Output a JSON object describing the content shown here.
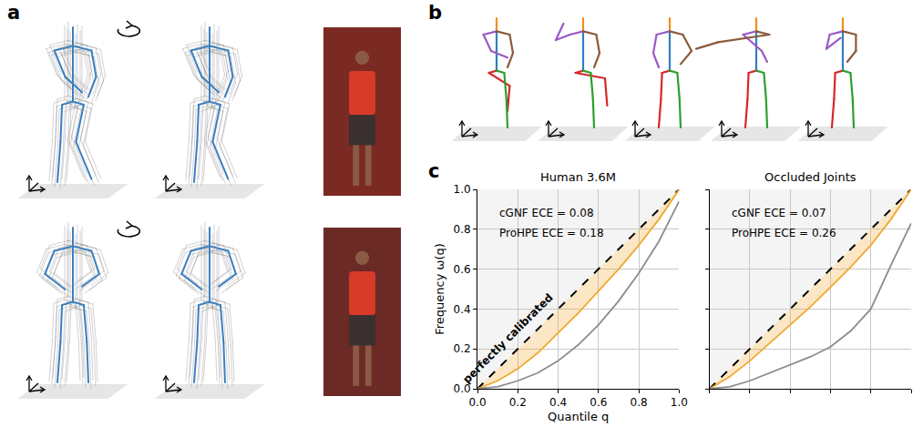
{
  "panel_labels": [
    "a",
    "b",
    "c"
  ],
  "chart_data": [
    {
      "type": "line",
      "title": "Human 3.6M",
      "x_label": "Quantile q",
      "y_label": "Frequency ω(q)",
      "x": [
        0,
        0.1,
        0.2,
        0.3,
        0.4,
        0.5,
        0.6,
        0.7,
        0.8,
        0.9,
        1.0
      ],
      "series": [
        {
          "name": "perfectly calibrated",
          "color": "#000000",
          "line_style": "dashed",
          "values": [
            0,
            0.1,
            0.2,
            0.3,
            0.4,
            0.5,
            0.6,
            0.7,
            0.8,
            0.9,
            1.0
          ]
        },
        {
          "type": "area",
          "color": "#f0a830",
          "values": [
            0,
            0.04,
            0.1,
            0.18,
            0.28,
            0.38,
            0.49,
            0.6,
            0.72,
            0.85,
            1.0
          ]
        },
        {
          "color": "#8c8c8c",
          "values": [
            0,
            0.01,
            0.04,
            0.08,
            0.14,
            0.22,
            0.32,
            0.44,
            0.58,
            0.74,
            0.94
          ]
        }
      ],
      "annotations": [
        "cGNF ECE = 0.08",
        "ProHPE ECE = 0.18"
      ],
      "xlim": [
        0,
        1
      ],
      "ylim": [
        0,
        1
      ],
      "xticks": [
        {
          "value": 0,
          "label": "0.0"
        },
        {
          "value": 0.2,
          "label": "0.2"
        },
        {
          "value": 0.4,
          "label": "0.4"
        },
        {
          "value": 0.6,
          "label": "0.6"
        },
        {
          "value": 0.8,
          "label": "0.8"
        },
        {
          "value": 1,
          "label": "1.0"
        }
      ],
      "yticks": [
        {
          "value": 0,
          "label": "0.0"
        },
        {
          "value": 0.2,
          "label": "0.2"
        },
        {
          "value": 0.4,
          "label": "0.4"
        },
        {
          "value": 0.6,
          "label": "0.6"
        },
        {
          "value": 0.8,
          "label": "0.8"
        },
        {
          "value": 1,
          "label": "1.0"
        }
      ],
      "grid": true
    },
    {
      "type": "line",
      "title": "Occluded Joints",
      "x": [
        0,
        0.1,
        0.2,
        0.3,
        0.4,
        0.5,
        0.6,
        0.7,
        0.8,
        0.9,
        1.0
      ],
      "series": [
        {
          "color": "#000000",
          "line_style": "dashed",
          "values": [
            0,
            0.1,
            0.2,
            0.3,
            0.4,
            0.5,
            0.6,
            0.7,
            0.8,
            0.9,
            1.0
          ]
        },
        {
          "type": "area",
          "color": "#f0a830",
          "values": [
            0,
            0.06,
            0.14,
            0.23,
            0.32,
            0.41,
            0.51,
            0.61,
            0.72,
            0.85,
            1.0
          ]
        },
        {
          "color": "#8c8c8c",
          "values": [
            0,
            0.01,
            0.04,
            0.08,
            0.12,
            0.16,
            0.21,
            0.29,
            0.4,
            0.62,
            0.83
          ]
        }
      ],
      "annotations": [
        "cGNF ECE = 0.07",
        "ProHPE ECE = 0.26"
      ],
      "xlim": [
        0,
        1
      ],
      "ylim": [
        0,
        1
      ],
      "xticks": [
        0,
        0.2,
        0.4,
        0.6,
        0.8,
        1
      ],
      "yticks": [
        0,
        0.2,
        0.4,
        0.6,
        0.8,
        1
      ],
      "tick_labels": false,
      "grid": true
    }
  ]
}
